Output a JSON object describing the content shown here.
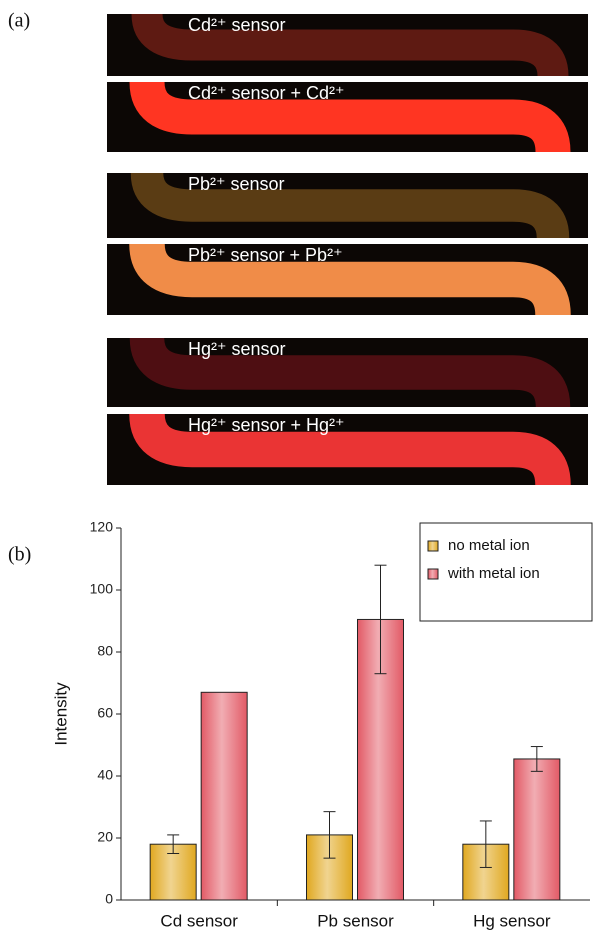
{
  "panel_labels": [
    "(a)",
    "(b)"
  ],
  "panel_a": {
    "strips": [
      {
        "label": "Cd²⁺ sensor",
        "color": "#5e1a12"
      },
      {
        "label": "Cd²⁺ sensor + Cd²⁺",
        "color": "#ff3522"
      },
      {
        "label": "Pb²⁺ sensor",
        "color": "#5a3c14"
      },
      {
        "label": "Pb²⁺ sensor  + Pb²⁺",
        "color": "#f08c48"
      },
      {
        "label": "Hg²⁺ sensor",
        "color": "#4e0e12"
      },
      {
        "label": "Hg²⁺ sensor + Hg²⁺",
        "color": "#ea3434"
      }
    ]
  },
  "chart_data": {
    "type": "bar",
    "y_label": "Intensity",
    "categories": [
      "Cd  sensor",
      "Pb  sensor",
      "Hg  sensor"
    ],
    "series": [
      {
        "name": "no metal ion",
        "color": "#e0a820",
        "values": [
          18,
          21,
          18
        ],
        "errors": [
          3,
          7.5,
          7.5
        ]
      },
      {
        "name": "with metal ion",
        "color": "#e25a66",
        "values": [
          67,
          90.5,
          45.5
        ],
        "errors": [
          null,
          17.5,
          4
        ]
      }
    ],
    "ylim": [
      0,
      120
    ],
    "yticks": [
      0,
      20,
      40,
      60,
      80,
      100,
      120
    ],
    "legend": "top-right"
  }
}
